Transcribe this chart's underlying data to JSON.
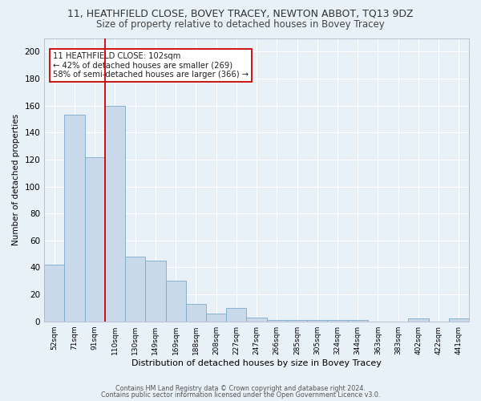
{
  "title": "11, HEATHFIELD CLOSE, BOVEY TRACEY, NEWTON ABBOT, TQ13 9DZ",
  "subtitle": "Size of property relative to detached houses in Bovey Tracey",
  "xlabel": "Distribution of detached houses by size in Bovey Tracey",
  "ylabel": "Number of detached properties",
  "bins": [
    "52sqm",
    "71sqm",
    "91sqm",
    "110sqm",
    "130sqm",
    "149sqm",
    "169sqm",
    "188sqm",
    "208sqm",
    "227sqm",
    "247sqm",
    "266sqm",
    "285sqm",
    "305sqm",
    "324sqm",
    "344sqm",
    "363sqm",
    "383sqm",
    "402sqm",
    "422sqm",
    "441sqm"
  ],
  "values": [
    42,
    153,
    122,
    160,
    48,
    45,
    30,
    13,
    6,
    10,
    3,
    1,
    1,
    1,
    1,
    1,
    0,
    0,
    2,
    0,
    2
  ],
  "bar_color": "#c9d9ea",
  "bar_edge_color": "#7aabcc",
  "ylim": [
    0,
    210
  ],
  "yticks": [
    0,
    20,
    40,
    60,
    80,
    100,
    120,
    140,
    160,
    180,
    200
  ],
  "vline_color": "#cc0000",
  "annotation_text": "11 HEATHFIELD CLOSE: 102sqm\n← 42% of detached houses are smaller (269)\n58% of semi-detached houses are larger (366) →",
  "annotation_box_color": "#ffffff",
  "annotation_box_edge": "#cc0000",
  "footer_line1": "Contains HM Land Registry data © Crown copyright and database right 2024.",
  "footer_line2": "Contains public sector information licensed under the Open Government Licence v3.0.",
  "background_color": "#e8f0f8",
  "grid_color": "#ffffff",
  "title_fontsize": 9,
  "subtitle_fontsize": 8.5,
  "title_color": "#333333",
  "subtitle_color": "#444444"
}
